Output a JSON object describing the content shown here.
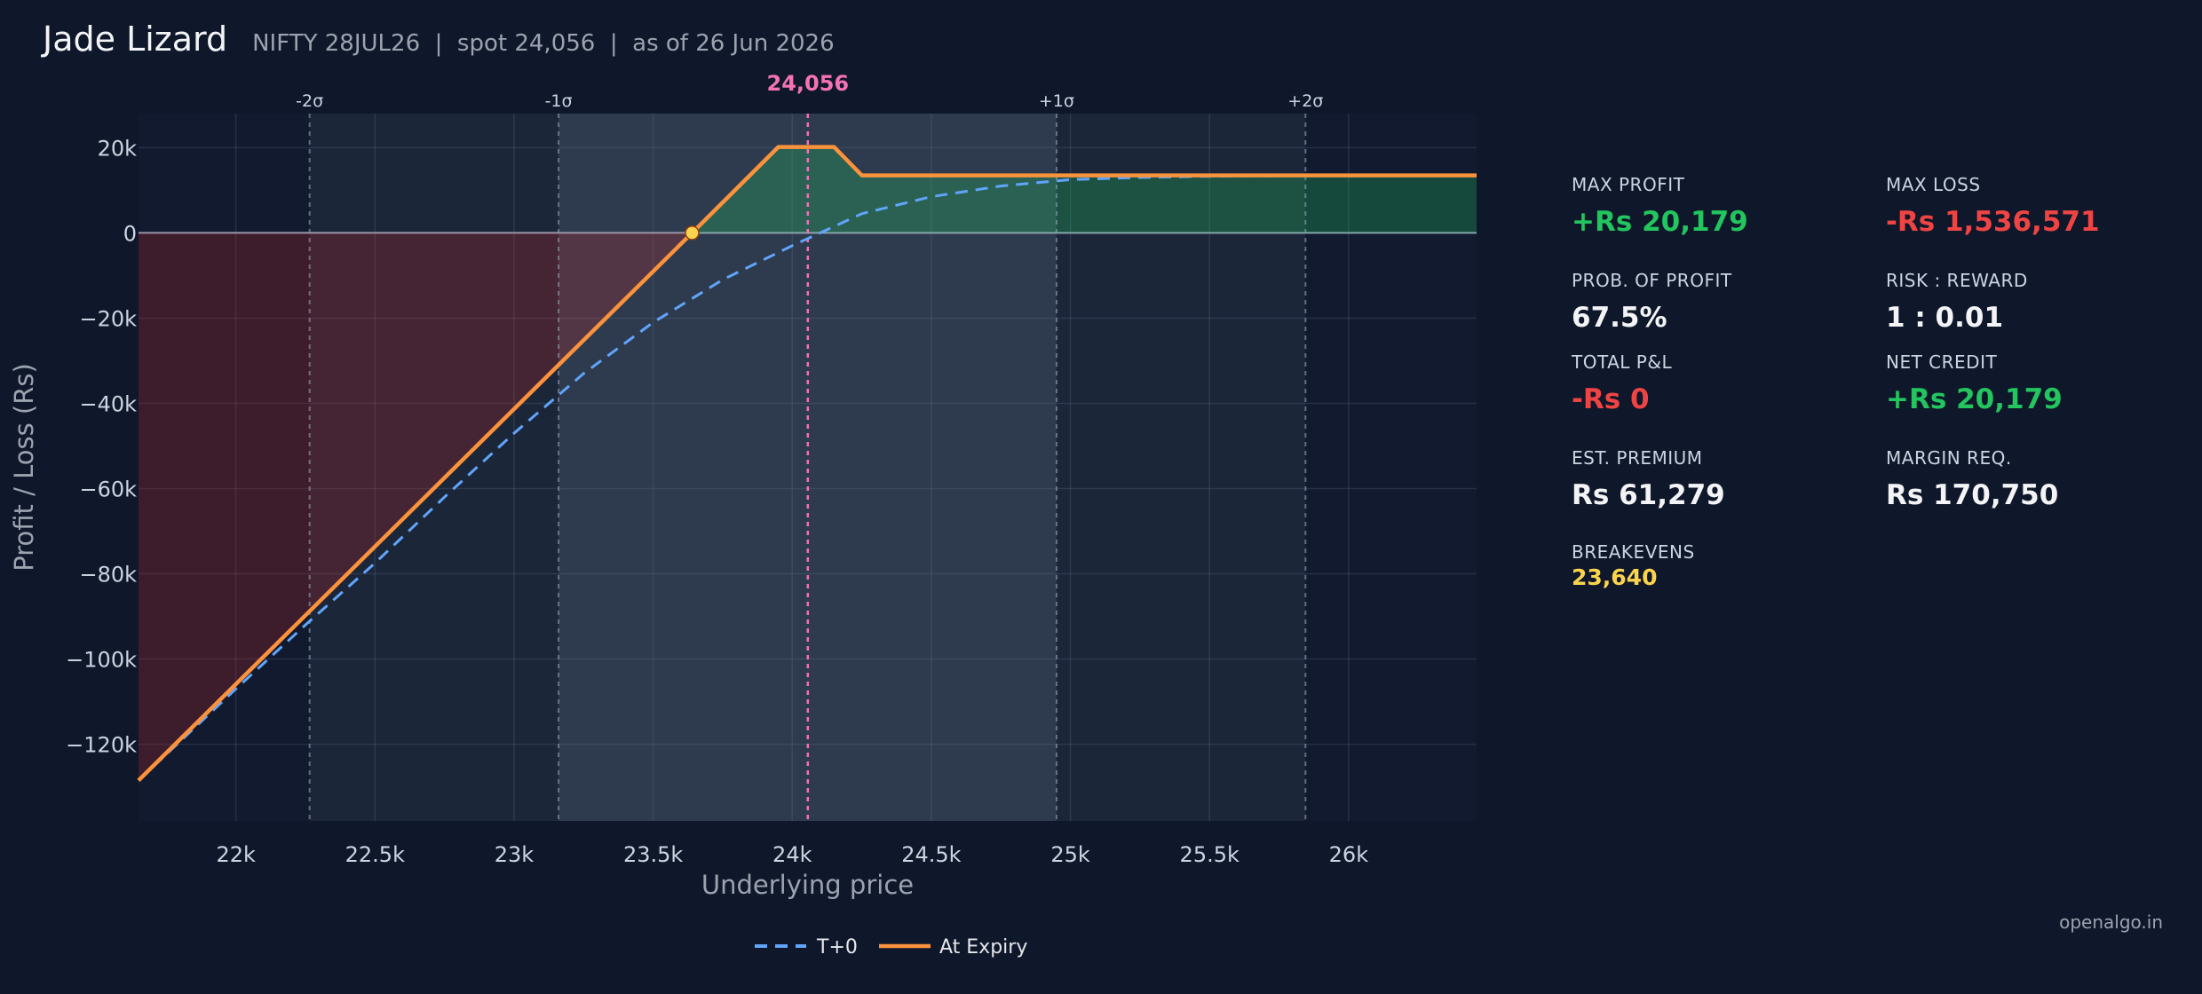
{
  "header": {
    "title": "Jade Lizard",
    "subtitle": "NIFTY 28JUL26  |  spot 24,056  |  as of 26 Jun 2026"
  },
  "stats": {
    "max_profit": {
      "label": "MAX PROFIT",
      "value": "+Rs 20,179"
    },
    "max_loss": {
      "label": "MAX LOSS",
      "value": "-Rs 1,536,571"
    },
    "prob_profit": {
      "label": "PROB. OF PROFIT",
      "value": "67.5%"
    },
    "risk_reward": {
      "label": "RISK : REWARD",
      "value": "1 : 0.01"
    },
    "total_pnl": {
      "label": "TOTAL P&L",
      "value": "-Rs 0"
    },
    "net_credit": {
      "label": "NET CREDIT",
      "value": "+Rs 20,179"
    },
    "est_premium": {
      "label": "EST. PREMIUM",
      "value": "Rs 61,279"
    },
    "margin_req": {
      "label": "MARGIN REQ.",
      "value": "Rs 170,750"
    },
    "breakevens": {
      "label": "BREAKEVENS",
      "value": "23,640"
    }
  },
  "brand": "openalgo.in",
  "colors": {
    "background": "#0f172a",
    "expiry_line": "#fb923c",
    "t0_line": "#60a5fa",
    "spot_line": "#f472b6",
    "profit_fill": "#22c55e",
    "loss_fill": "#dc2626",
    "breakeven_marker": "#fcd34d",
    "zero_line": "#94a3b8",
    "profit_text": "#22c55e",
    "loss_text": "#ef4444"
  },
  "chart_data": {
    "type": "line",
    "xlabel": "Underlying price",
    "ylabel": "Profit / Loss (Rs)",
    "xlim": [
      21650,
      26460
    ],
    "ylim": [
      -138000,
      28000
    ],
    "x_ticks": [
      22000,
      22500,
      23000,
      23500,
      24000,
      24500,
      25000,
      25500,
      26000
    ],
    "x_tick_labels": [
      "22k",
      "22.5k",
      "23k",
      "23.5k",
      "24k",
      "24.5k",
      "25k",
      "25.5k",
      "26k"
    ],
    "y_ticks": [
      20000,
      0,
      -20000,
      -40000,
      -60000,
      -80000,
      -100000,
      -120000
    ],
    "y_tick_labels": [
      "20k",
      "0",
      "−20k",
      "−40k",
      "−60k",
      "−80k",
      "−100k",
      "−120k"
    ],
    "spot": 24056,
    "spot_label": "24,056",
    "sigma_levels": [
      {
        "label": "-2σ",
        "x": 22265
      },
      {
        "label": "-1σ",
        "x": 23160
      },
      {
        "label": "+1σ",
        "x": 24950
      },
      {
        "label": "+2σ",
        "x": 25845
      }
    ],
    "breakevens": [
      23640
    ],
    "grid": true,
    "legend_position": "bottom-center",
    "series": [
      {
        "name": "T+0",
        "style": "dashed",
        "x": [
          21650,
          22000,
          22250,
          22500,
          22750,
          23000,
          23250,
          23500,
          23750,
          24000,
          24250,
          24500,
          24750,
          25000,
          25250,
          25500,
          26000,
          26460
        ],
        "y": [
          -128500,
          -107000,
          -92000,
          -77500,
          -62000,
          -47000,
          -33000,
          -21000,
          -11000,
          -3000,
          4500,
          8500,
          11000,
          12500,
          13000,
          13300,
          13500,
          13500
        ]
      },
      {
        "name": "At Expiry",
        "style": "solid",
        "x": [
          21650,
          23640,
          23950,
          24150,
          24250,
          26460
        ],
        "y": [
          -128500,
          0,
          20179,
          20179,
          13500,
          13500
        ]
      }
    ]
  }
}
